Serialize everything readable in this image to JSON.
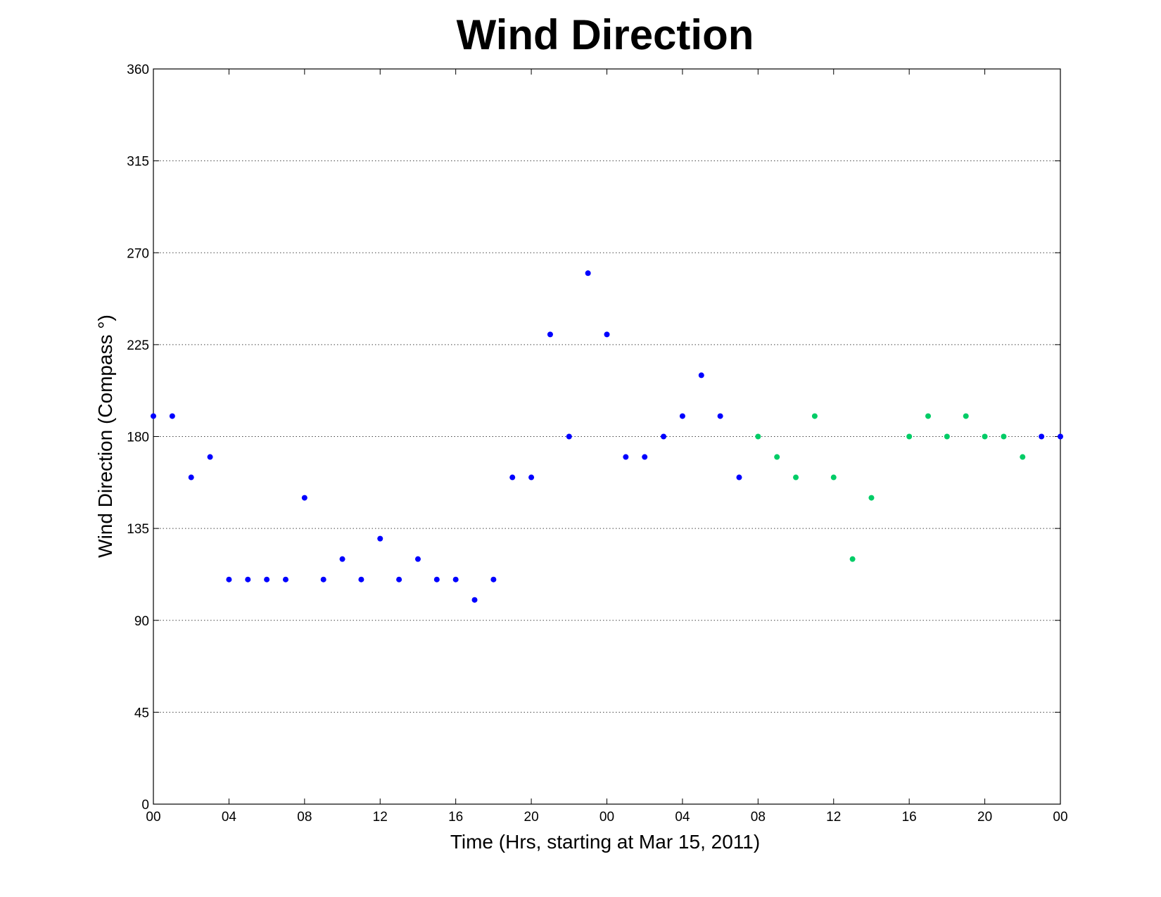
{
  "chart_data": {
    "type": "scatter",
    "title": "Wind Direction",
    "xlabel": "Time (Hrs, starting at Mar 15, 2011)",
    "ylabel": "Wind Direction (Compass  °)",
    "xlim": [
      0,
      48
    ],
    "ylim": [
      0,
      360
    ],
    "x_ticks": [
      {
        "x": 0,
        "label": "00"
      },
      {
        "x": 4,
        "label": "04"
      },
      {
        "x": 8,
        "label": "08"
      },
      {
        "x": 12,
        "label": "12"
      },
      {
        "x": 16,
        "label": "16"
      },
      {
        "x": 20,
        "label": "20"
      },
      {
        "x": 24,
        "label": "00"
      },
      {
        "x": 28,
        "label": "04"
      },
      {
        "x": 32,
        "label": "08"
      },
      {
        "x": 36,
        "label": "12"
      },
      {
        "x": 40,
        "label": "16"
      },
      {
        "x": 44,
        "label": "20"
      },
      {
        "x": 48,
        "label": "00"
      }
    ],
    "y_ticks": [
      0,
      45,
      90,
      135,
      180,
      225,
      270,
      315,
      360
    ],
    "grid": "horizontal dotted",
    "series": [
      {
        "color": "#0000ff",
        "points": [
          [
            0,
            190
          ],
          [
            1,
            190
          ],
          [
            2,
            160
          ],
          [
            3,
            170
          ],
          [
            4,
            110
          ],
          [
            5,
            110
          ],
          [
            6,
            110
          ],
          [
            7,
            110
          ],
          [
            8,
            150
          ],
          [
            9,
            110
          ],
          [
            10,
            120
          ],
          [
            11,
            110
          ],
          [
            12,
            130
          ],
          [
            13,
            110
          ],
          [
            14,
            120
          ],
          [
            15,
            110
          ],
          [
            16,
            110
          ],
          [
            17,
            100
          ],
          [
            18,
            110
          ],
          [
            19,
            160
          ],
          [
            20,
            160
          ],
          [
            21,
            230
          ],
          [
            22,
            180
          ],
          [
            23,
            260
          ],
          [
            24,
            230
          ],
          [
            25,
            170
          ],
          [
            26,
            170
          ],
          [
            27,
            180
          ],
          [
            28,
            190
          ],
          [
            29,
            210
          ],
          [
            30,
            190
          ],
          [
            31,
            160
          ],
          [
            47,
            180
          ],
          [
            48,
            180
          ]
        ]
      },
      {
        "color": "#00cc66",
        "points": [
          [
            32,
            180
          ],
          [
            33,
            170
          ],
          [
            34,
            160
          ],
          [
            35,
            190
          ],
          [
            36,
            160
          ],
          [
            37,
            120
          ],
          [
            38,
            150
          ],
          [
            40,
            180
          ],
          [
            41,
            190
          ],
          [
            42,
            180
          ],
          [
            43,
            190
          ],
          [
            44,
            180
          ],
          [
            45,
            180
          ],
          [
            46,
            170
          ]
        ]
      }
    ]
  }
}
